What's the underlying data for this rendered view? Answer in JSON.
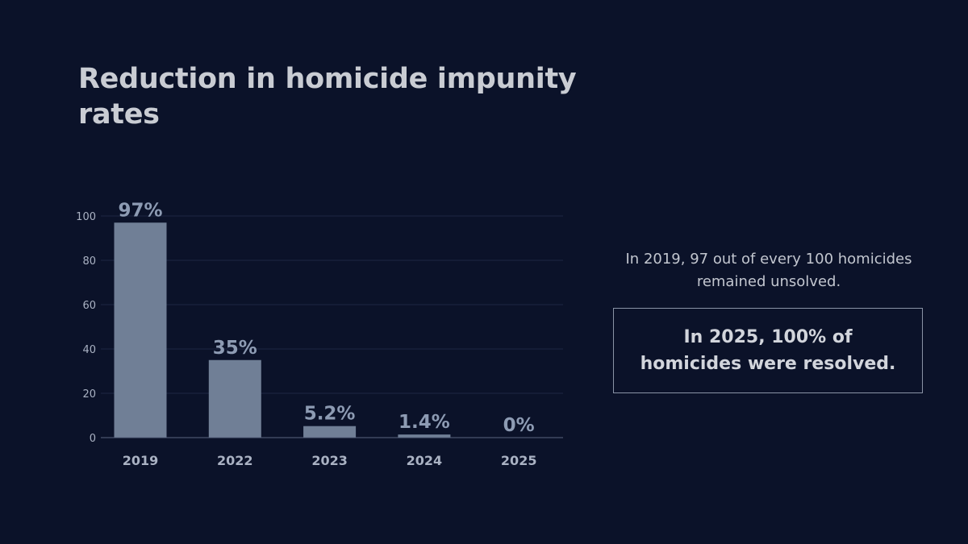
{
  "slide": {
    "title": "Reduction in homicide impunity rates",
    "note": "In 2019, 97 out of every 100 homicides remained unsolved.",
    "highlight": "In 2025, 100% of homicides were resolved."
  },
  "chart_data": {
    "type": "bar",
    "categories": [
      "2019",
      "2022",
      "2023",
      "2024",
      "2025"
    ],
    "values": [
      97,
      35,
      5.2,
      1.4,
      0
    ],
    "data_labels": [
      "97%",
      "35%",
      "5.2%",
      "1.4%",
      "0%"
    ],
    "yticks": [
      0,
      20,
      40,
      60,
      80,
      100
    ],
    "ylim": [
      0,
      100
    ],
    "grid": true,
    "title": "",
    "xlabel": "",
    "ylabel": "",
    "colors": {
      "bar": "#707f96",
      "background": "#0b1229"
    }
  }
}
